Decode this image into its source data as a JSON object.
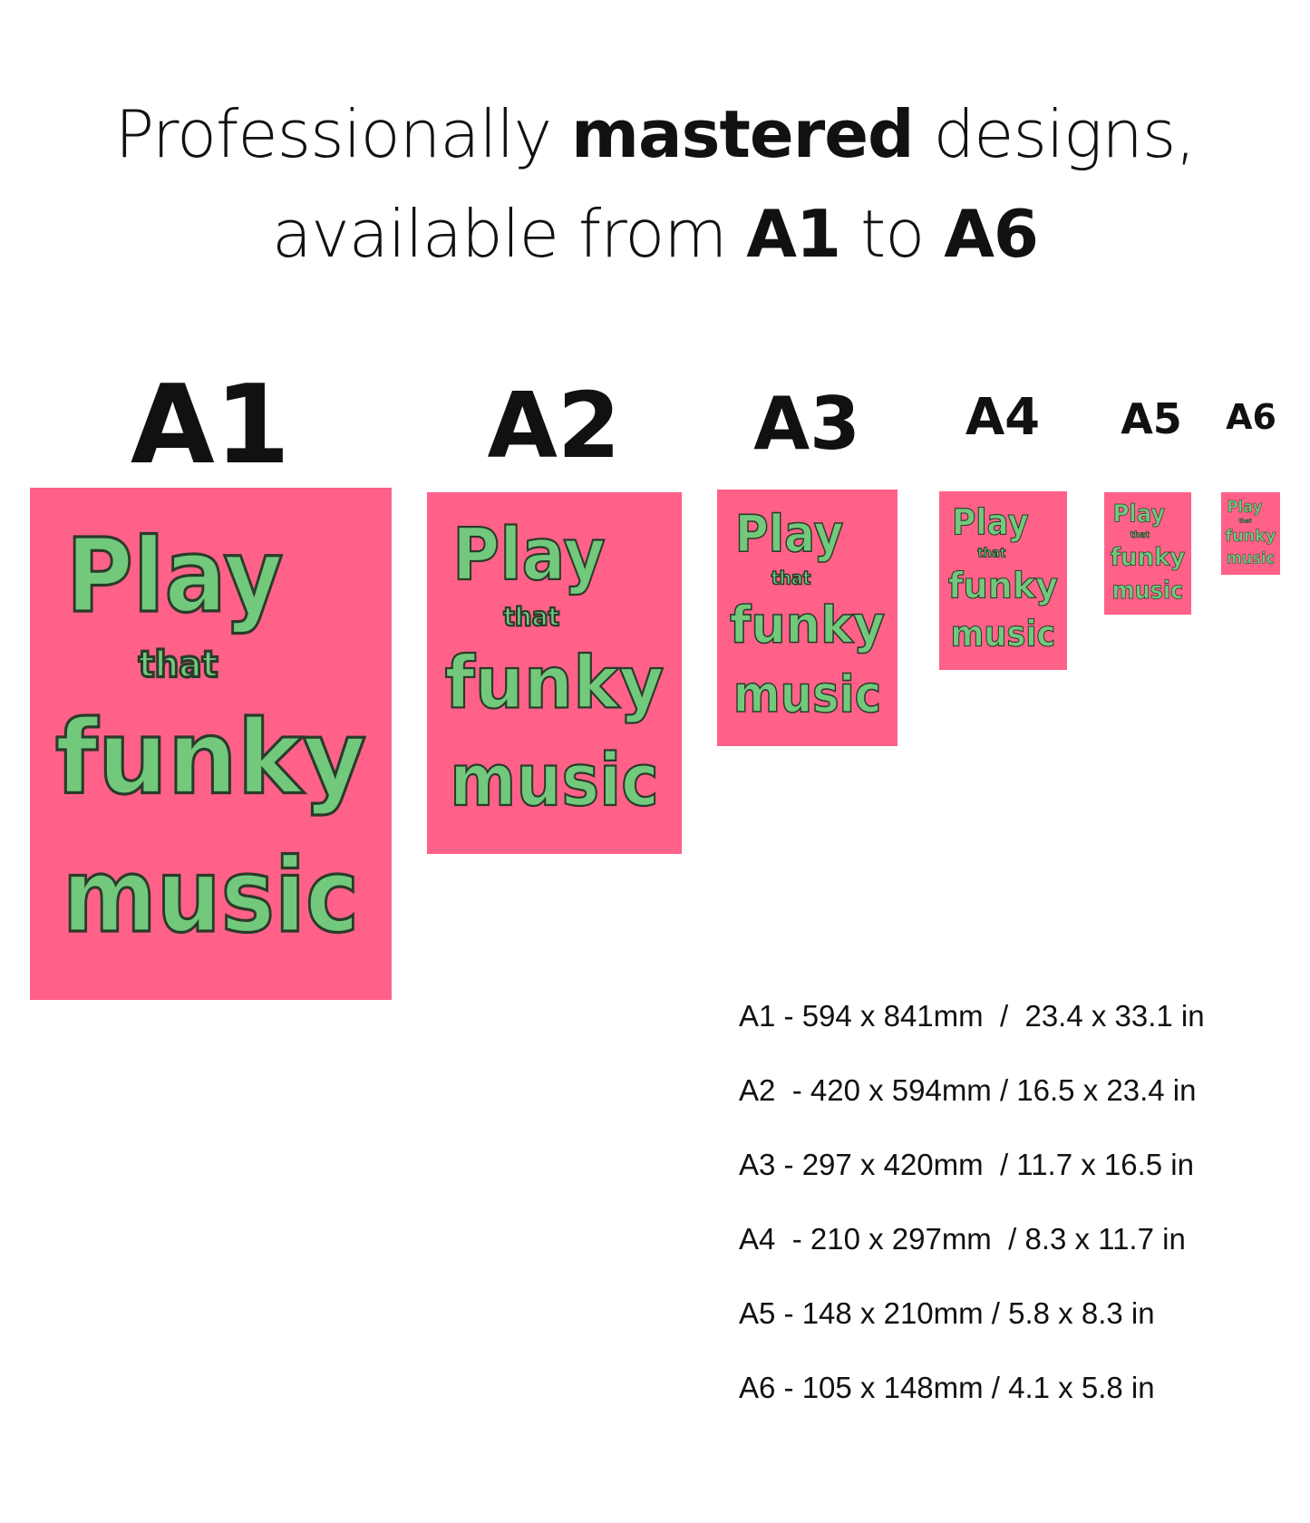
{
  "headline": {
    "line1": {
      "pre": "Professionally ",
      "bold": "mastered",
      "post": " designs,"
    },
    "line2": {
      "pre": "available from ",
      "bold1": "A1",
      "mid": " to ",
      "bold2": "A6"
    }
  },
  "colors": {
    "poster_bg": "#ff6189",
    "poster_text": "#72c97c",
    "text": "#111111"
  },
  "poster_text": {
    "line1": "Play",
    "line2": "that",
    "line3": "funky",
    "line4": "music"
  },
  "sizes": [
    {
      "label": "A1",
      "spec": "A1 - 594 x 841mm  /  23.4 x 33.1 in"
    },
    {
      "label": "A2",
      "spec": "A2  - 420 x 594mm / 16.5 x 23.4 in"
    },
    {
      "label": "A3",
      "spec": "A3 - 297 x 420mm  / 11.7 x 16.5 in"
    },
    {
      "label": "A4",
      "spec": "A4  - 210 x 297mm  / 8.3 x 11.7 in"
    },
    {
      "label": "A5",
      "spec": "A5 - 148 x 210mm / 5.8 x 8.3 in"
    },
    {
      "label": "A6",
      "spec": "A6 - 105 x 148mm / 4.1 x 5.8 in"
    }
  ]
}
